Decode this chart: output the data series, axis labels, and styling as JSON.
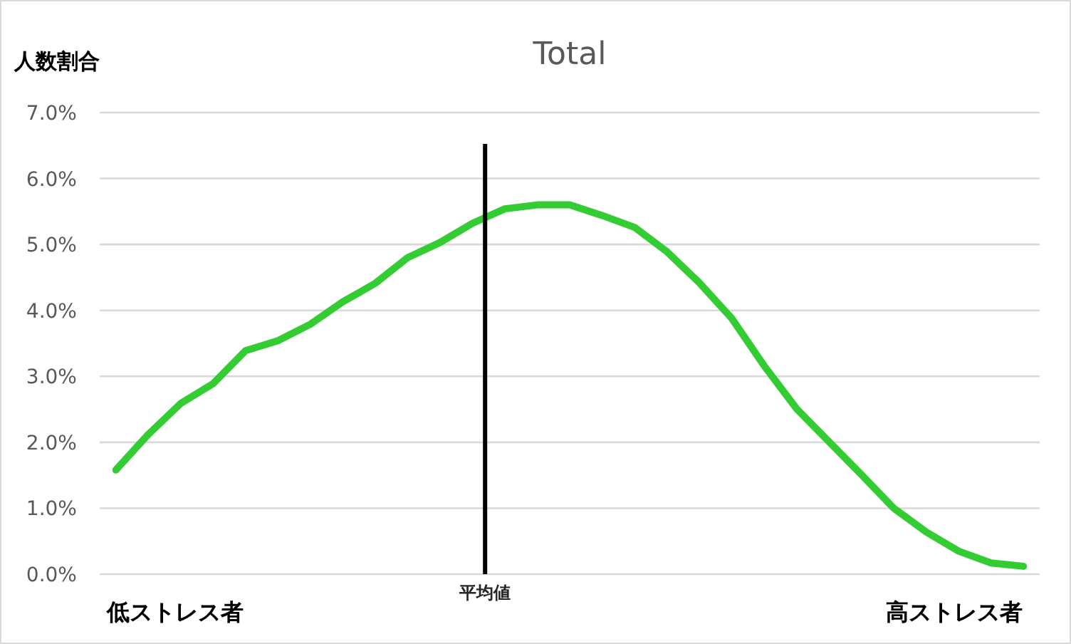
{
  "chart_data": {
    "type": "line",
    "title": "Total",
    "ylabel": "人数割合",
    "categories": [
      null,
      null,
      null,
      null,
      null,
      null,
      null,
      null,
      null,
      null,
      null,
      null,
      null,
      null,
      null,
      null,
      null,
      null,
      null,
      null,
      null,
      null,
      null,
      null,
      null,
      null,
      null,
      null,
      null
    ],
    "series": [
      {
        "color": "#33cc33",
        "values": [
          1.58,
          2.12,
          2.59,
          2.89,
          3.39,
          3.54,
          3.79,
          4.13,
          4.41,
          4.8,
          5.03,
          5.32,
          5.54,
          5.6,
          5.6,
          5.44,
          5.26,
          4.89,
          4.42,
          3.88,
          3.16,
          2.51,
          2.01,
          1.51,
          1.0,
          0.64,
          0.35,
          0.17,
          0.12
        ]
      }
    ],
    "ylim": [
      0,
      7
    ],
    "yticks": [
      {
        "value": 0,
        "label": "0.0%"
      },
      {
        "value": 1,
        "label": "1.0%"
      },
      {
        "value": 2,
        "label": "2.0%"
      },
      {
        "value": 3,
        "label": "3.0%"
      },
      {
        "value": 4,
        "label": "4.0%"
      },
      {
        "value": 5,
        "label": "5.0%"
      },
      {
        "value": 6,
        "label": "6.0%"
      },
      {
        "value": 7,
        "label": "7.0%"
      }
    ],
    "annotations": [
      "低ストレス者",
      "平均値",
      "高ストレス者"
    ],
    "grid": "y",
    "marker": "none",
    "line_style": "solid"
  }
}
